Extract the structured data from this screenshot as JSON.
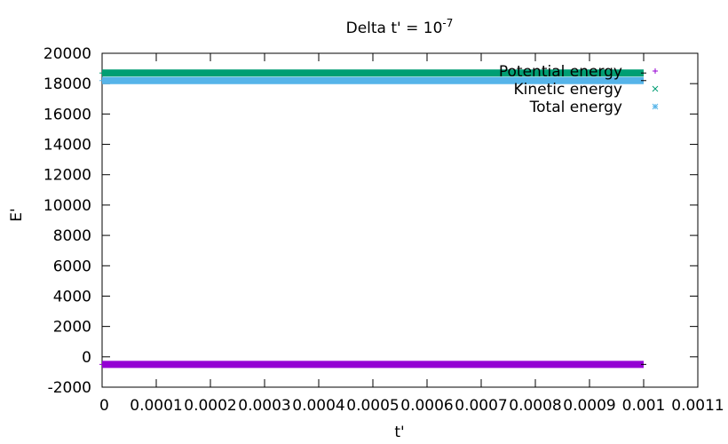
{
  "chart_data": {
    "type": "scatter",
    "title": "Delta t' = 10",
    "title_superscript": "-7",
    "xlabel": "t'",
    "ylabel": "E'",
    "xlim": [
      0,
      0.0011
    ],
    "ylim": [
      -2000,
      20000
    ],
    "xticks": [
      0,
      0.0001,
      0.0002,
      0.0003,
      0.0004,
      0.0005,
      0.0006,
      0.0007,
      0.0008,
      0.0009,
      0.001,
      0.0011
    ],
    "xtick_labels": [
      "0",
      "0.0001",
      "0.0002",
      "0.0003",
      "0.0004",
      "0.0005",
      "0.0006",
      "0.0007",
      "0.0008",
      "0.0009",
      "0.001",
      "0.0011"
    ],
    "yticks": [
      -2000,
      0,
      2000,
      4000,
      6000,
      8000,
      10000,
      12000,
      14000,
      16000,
      18000,
      20000
    ],
    "ytick_labels": [
      "-2000",
      "0",
      "2000",
      "4000",
      "6000",
      "8000",
      "10000",
      "12000",
      "14000",
      "16000",
      "18000",
      "20000"
    ],
    "grid": false,
    "legend_position": "top-right",
    "series": [
      {
        "name": "Potential energy",
        "marker": "+",
        "color": "#9400d3",
        "x_range": [
          0,
          0.001
        ],
        "value": -500
      },
      {
        "name": "Kinetic energy",
        "marker": "x",
        "color": "#009e73",
        "x_range": [
          0,
          0.001
        ],
        "value": 18700
      },
      {
        "name": "Total energy",
        "marker": "*",
        "color": "#56b4e9",
        "x_range": [
          0,
          0.001
        ],
        "value": 18200
      }
    ]
  }
}
